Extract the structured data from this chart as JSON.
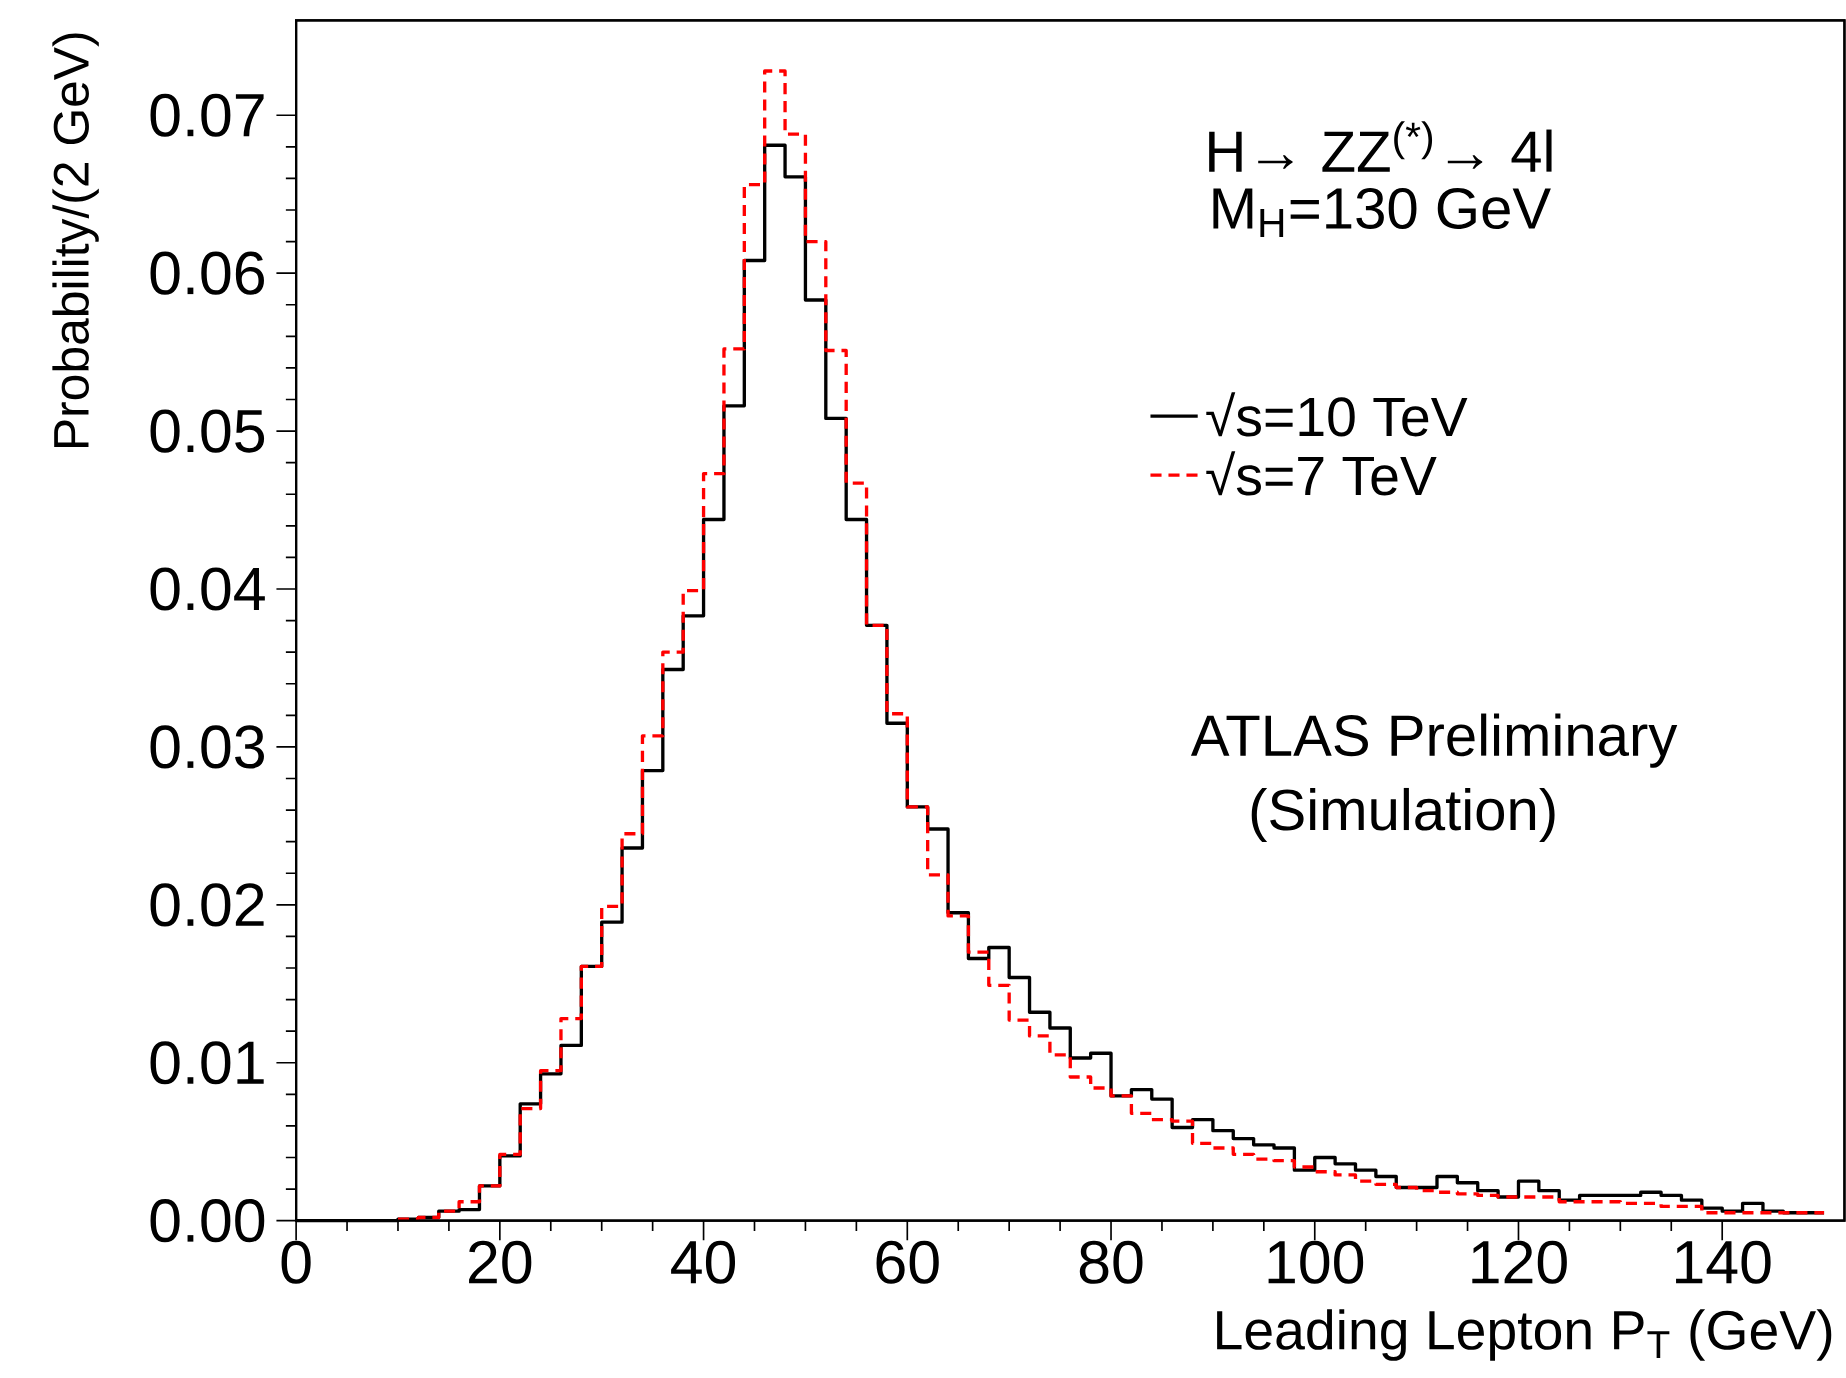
{
  "chart_data": {
    "type": "step",
    "xlabel": "Leading Lepton P$_{T}$ (GeV)",
    "ylabel": "Probability/(2 GeV)",
    "annotations": [
      "H→ ZZ$^{(*)}$→ 4l",
      "M$_{H}$=130 GeV",
      "ATLAS Preliminary",
      "(Simulation)"
    ],
    "x": [
      0,
      2,
      4,
      6,
      8,
      10,
      12,
      14,
      16,
      18,
      20,
      22,
      24,
      26,
      28,
      30,
      32,
      34,
      36,
      38,
      40,
      42,
      44,
      46,
      48,
      50,
      52,
      54,
      56,
      58,
      60,
      62,
      64,
      66,
      68,
      70,
      72,
      74,
      76,
      78,
      80,
      82,
      84,
      86,
      88,
      90,
      92,
      94,
      96,
      98,
      100,
      102,
      104,
      106,
      108,
      110,
      112,
      114,
      116,
      118,
      120,
      122,
      124,
      126,
      128,
      130,
      132,
      134,
      136,
      138,
      140,
      142,
      144,
      146,
      148,
      150
    ],
    "series": [
      {
        "name": "√s=10 TeV",
        "color": "#000000",
        "line_style": "solid",
        "values": [
          0,
          0,
          0,
          0,
          0,
          0.0001,
          0.0002,
          0.0006,
          0.0007,
          0.0022,
          0.0041,
          0.0074,
          0.0093,
          0.0111,
          0.0161,
          0.0189,
          0.0236,
          0.0285,
          0.0349,
          0.0383,
          0.0444,
          0.0516,
          0.0608,
          0.0681,
          0.0661,
          0.0583,
          0.0508,
          0.0444,
          0.0377,
          0.0315,
          0.0262,
          0.0248,
          0.0195,
          0.0166,
          0.0173,
          0.0154,
          0.0132,
          0.0122,
          0.0103,
          0.0106,
          0.0079,
          0.0083,
          0.0077,
          0.0059,
          0.0064,
          0.0057,
          0.0052,
          0.0048,
          0.0046,
          0.0032,
          0.004,
          0.0036,
          0.0032,
          0.0028,
          0.0021,
          0.0021,
          0.0028,
          0.0024,
          0.0019,
          0.0015,
          0.0025,
          0.0019,
          0.0013,
          0.0016,
          0.0016,
          0.0016,
          0.0018,
          0.0016,
          0.0013,
          0.0008,
          0.0006,
          0.0011,
          0.0006,
          0.0005,
          0.0005,
          0.0005
        ]
      },
      {
        "name": "√s=7 TeV",
        "color": "#ff0000",
        "line_style": "dashed",
        "values": [
          null,
          null,
          null,
          null,
          null,
          0.0001,
          0.0002,
          0.0006,
          0.0012,
          0.0022,
          0.0042,
          0.0071,
          0.0095,
          0.0128,
          0.0161,
          0.0199,
          0.0245,
          0.0307,
          0.036,
          0.0399,
          0.0473,
          0.0552,
          0.0656,
          0.0728,
          0.0688,
          0.062,
          0.0551,
          0.0467,
          0.0377,
          0.0321,
          0.0262,
          0.0219,
          0.0193,
          0.017,
          0.0149,
          0.0127,
          0.0117,
          0.0105,
          0.0091,
          0.0084,
          0.0079,
          0.0068,
          0.0064,
          0.0063,
          0.0049,
          0.0046,
          0.0042,
          0.0039,
          0.0038,
          0.0034,
          0.0031,
          0.0029,
          0.0025,
          0.0023,
          0.0021,
          0.0019,
          0.0018,
          0.0017,
          0.0016,
          0.0015,
          0.0015,
          0.0015,
          0.0012,
          0.0012,
          0.0012,
          0.0011,
          0.0011,
          0.0009,
          0.0009,
          0.0005,
          0.0005,
          0.0005,
          0.0005,
          0.0005,
          0.0005,
          0.0005
        ]
      }
    ],
    "xlim": [
      0,
      152
    ],
    "ylim": [
      0,
      0.076
    ],
    "xticks": [
      0,
      20,
      40,
      60,
      80,
      100,
      120,
      140
    ],
    "yticks": [
      {
        "value": 0,
        "label": "0.00"
      },
      0.01,
      0.02,
      0.03,
      0.04,
      0.05,
      0.06,
      0.07
    ],
    "legend": "top right"
  }
}
